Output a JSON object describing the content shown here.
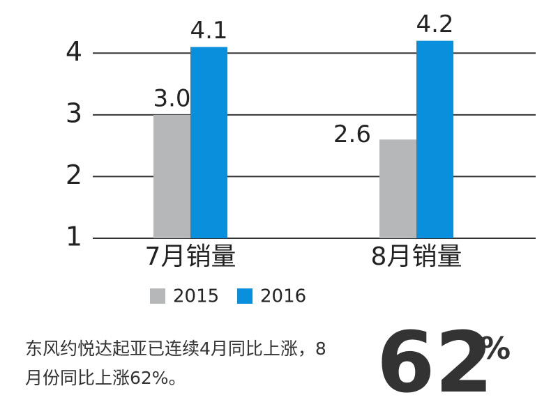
{
  "chart_data": {
    "type": "bar",
    "categories": [
      "7月销量",
      "8月销量"
    ],
    "series": [
      {
        "name": "2015",
        "color": "#b5b7b9",
        "values": [
          3.0,
          2.6
        ],
        "value_labels": [
          "3.0",
          "2.6"
        ]
      },
      {
        "name": "2016",
        "color": "#0a8fdc",
        "values": [
          4.1,
          4.2
        ],
        "value_labels": [
          "4.1",
          "4.2"
        ]
      }
    ],
    "ylim": [
      1,
      4.5
    ],
    "yticks": [
      1,
      2,
      3,
      4
    ],
    "grid": true,
    "legend": "bottom",
    "note": "东风约悦达起亚已连续4月同比上涨，8月份同比上涨62%。",
    "highlight": "62",
    "highlight_unit": "%"
  }
}
